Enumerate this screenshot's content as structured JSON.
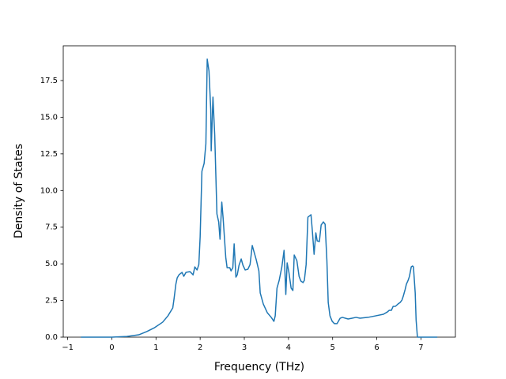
{
  "chart_data": {
    "type": "line",
    "xlabel": "Frequency (THz)",
    "ylabel": "Density of States",
    "xlim": [
      -1.1,
      7.78
    ],
    "ylim": [
      0,
      19.87
    ],
    "xticks": [
      {
        "value": -1,
        "label": "−1"
      },
      0,
      1,
      2,
      3,
      4,
      5,
      6,
      7
    ],
    "yticks": [
      {
        "value": 0,
        "label": "0.0"
      },
      {
        "value": 2.5,
        "label": "2.5"
      },
      {
        "value": 5,
        "label": "5.0"
      },
      {
        "value": 7.5,
        "label": "7.5"
      },
      {
        "value": 10,
        "label": "10.0"
      },
      {
        "value": 12.5,
        "label": "12.5"
      },
      {
        "value": 15,
        "label": "15.0"
      },
      {
        "value": 17.5,
        "label": "17.5"
      }
    ],
    "color": "#1f77b4",
    "x": [
      -0.7,
      0,
      0.34,
      0.61,
      0.79,
      0.97,
      1.15,
      1.27,
      1.38,
      1.41,
      1.45,
      1.48,
      1.52,
      1.59,
      1.63,
      1.68,
      1.77,
      1.84,
      1.88,
      1.93,
      1.97,
      2.0,
      2.04,
      2.09,
      2.13,
      2.16,
      2.2,
      2.24,
      2.25,
      2.29,
      2.33,
      2.38,
      2.42,
      2.45,
      2.49,
      2.52,
      2.58,
      2.61,
      2.67,
      2.7,
      2.74,
      2.77,
      2.81,
      2.84,
      2.88,
      2.93,
      2.97,
      3.02,
      3.08,
      3.13,
      3.18,
      3.22,
      3.27,
      3.33,
      3.36,
      3.43,
      3.52,
      3.61,
      3.67,
      3.7,
      3.74,
      3.79,
      3.85,
      3.9,
      3.94,
      3.97,
      4.01,
      4.06,
      4.1,
      4.13,
      4.19,
      4.24,
      4.28,
      4.33,
      4.36,
      4.4,
      4.44,
      4.51,
      4.54,
      4.58,
      4.62,
      4.65,
      4.7,
      4.74,
      4.79,
      4.83,
      4.87,
      4.9,
      4.94,
      4.99,
      5.04,
      5.1,
      5.17,
      5.22,
      5.35,
      5.44,
      5.53,
      5.62,
      5.8,
      5.97,
      6.15,
      6.24,
      6.28,
      6.33,
      6.37,
      6.42,
      6.48,
      6.53,
      6.57,
      6.6,
      6.64,
      6.67,
      6.71,
      6.74,
      6.78,
      6.81,
      6.83,
      6.87,
      6.89,
      6.92,
      7.37
    ],
    "values": [
      0,
      0,
      0.05,
      0.16,
      0.38,
      0.65,
      1.02,
      1.45,
      1.99,
      2.64,
      3.61,
      4.04,
      4.25,
      4.42,
      4.15,
      4.42,
      4.47,
      4.25,
      4.79,
      4.58,
      4.95,
      6.84,
      11.31,
      11.85,
      13.19,
      18.96,
      18.15,
      15.51,
      12.71,
      16.37,
      13.79,
      8.4,
      7.86,
      6.68,
      9.21,
      8.13,
      5.44,
      4.74,
      4.74,
      4.52,
      4.74,
      6.36,
      4.09,
      4.25,
      4.9,
      5.33,
      4.9,
      4.58,
      4.63,
      4.95,
      6.25,
      5.82,
      5.28,
      4.52,
      3.02,
      2.26,
      1.67,
      1.35,
      1.08,
      1.45,
      3.34,
      3.88,
      4.79,
      5.92,
      2.91,
      5.06,
      4.42,
      3.34,
      3.18,
      5.6,
      5.22,
      4.15,
      3.83,
      3.72,
      3.88,
      4.95,
      8.18,
      8.35,
      7.27,
      5.65,
      7.11,
      6.57,
      6.52,
      7.65,
      7.86,
      7.7,
      5.22,
      2.37,
      1.45,
      1.08,
      0.92,
      0.92,
      1.29,
      1.35,
      1.24,
      1.29,
      1.35,
      1.29,
      1.35,
      1.45,
      1.56,
      1.72,
      1.83,
      1.83,
      2.1,
      2.1,
      2.26,
      2.37,
      2.53,
      2.8,
      3.23,
      3.61,
      3.88,
      4.15,
      4.79,
      4.85,
      4.79,
      3.02,
      1.18,
      0,
      0
    ]
  }
}
